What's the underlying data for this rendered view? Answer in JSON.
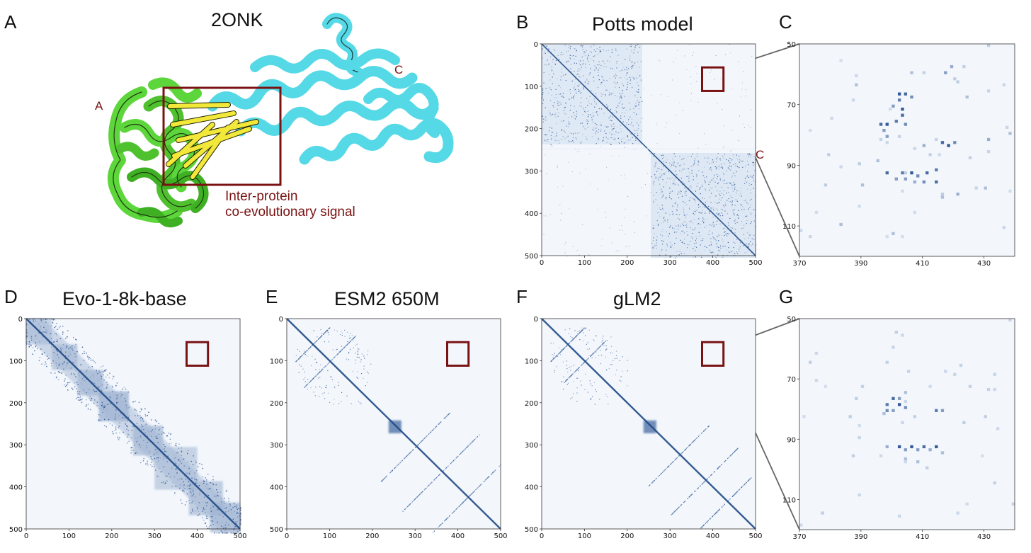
{
  "figure": {
    "panel_letters": {
      "A": "A",
      "B": "B",
      "C": "C",
      "D": "D",
      "E": "E",
      "F": "F",
      "G": "G"
    },
    "panel_a": {
      "title": "2ONK",
      "chain_a_label": "A",
      "chain_c_label": "C",
      "annotation_line1": "Inter-protein",
      "annotation_line2": "co-evolutionary signal",
      "colors": {
        "chain_a": "#5cd63a",
        "chain_c": "#56d9e6",
        "contacts": "#f2e83a",
        "highlight_box": "#7a1212"
      }
    },
    "colors": {
      "map_dark": "#1f4a86",
      "map_mid": "#6f9bcb",
      "map_light": "#dbe7f4",
      "box": "#7a1212"
    }
  },
  "chart_data": [
    {
      "id": "B",
      "type": "heatmap",
      "title": "Potts model",
      "xlim": [
        0,
        500
      ],
      "ylim": [
        0,
        500
      ],
      "xticks": [
        "0",
        "100",
        "200",
        "300",
        "400",
        "500"
      ],
      "yticks": [
        "0",
        "100",
        "200",
        "300",
        "400",
        "500"
      ],
      "block_labels": [
        "A",
        "C"
      ],
      "chain_boundary": 235,
      "highlight_region": {
        "x": [
          375,
          425
        ],
        "y": [
          55,
          110
        ]
      }
    },
    {
      "id": "C",
      "type": "heatmap",
      "title": "",
      "xlim": [
        370,
        440
      ],
      "ylim": [
        50,
        120
      ],
      "xticks": [
        "370",
        "390",
        "410",
        "430"
      ],
      "yticks": [
        "50",
        "70",
        "90",
        "110"
      ],
      "points": [
        [
          402,
          66,
          0.9
        ],
        [
          404,
          66,
          0.8
        ],
        [
          406,
          67,
          0.6
        ],
        [
          402,
          68,
          0.7
        ],
        [
          400,
          70,
          0.5
        ],
        [
          403,
          71,
          0.9
        ],
        [
          403,
          73,
          0.8
        ],
        [
          396,
          76,
          0.8
        ],
        [
          398,
          76,
          0.9
        ],
        [
          404,
          76,
          0.6
        ],
        [
          397,
          78,
          0.5
        ],
        [
          401,
          75,
          0.7
        ],
        [
          398,
          80,
          0.5
        ],
        [
          416,
          82,
          0.8
        ],
        [
          418,
          83,
          0.9
        ],
        [
          420,
          82,
          0.6
        ],
        [
          410,
          83,
          0.4
        ],
        [
          398,
          92,
          0.8
        ],
        [
          403,
          92,
          0.7
        ],
        [
          406,
          92,
          0.9
        ],
        [
          411,
          92,
          0.8
        ],
        [
          414,
          91,
          0.7
        ],
        [
          408,
          93,
          0.6
        ],
        [
          404,
          94,
          0.5
        ],
        [
          410,
          95,
          0.6
        ],
        [
          414,
          95,
          0.8
        ],
        [
          401,
          94,
          0.5
        ],
        [
          407,
          95,
          0.4
        ],
        [
          395,
          88,
          0.3
        ],
        [
          419,
          57,
          0.4
        ],
        [
          417,
          59,
          0.5
        ],
        [
          406,
          59,
          0.3
        ],
        [
          388,
          63,
          0.3
        ],
        [
          424,
          67,
          0.3
        ],
        [
          390,
          96,
          0.3
        ],
        [
          421,
          99,
          0.4
        ],
        [
          416,
          100,
          0.3
        ],
        [
          430,
          97,
          0.3
        ],
        [
          383,
          109,
          0.3
        ],
        [
          400,
          112,
          0.3
        ],
        [
          431,
          81,
          0.4
        ],
        [
          438,
          79,
          0.3
        ]
      ]
    },
    {
      "id": "D",
      "type": "heatmap",
      "title": "Evo-1-8k-base",
      "xlim": [
        0,
        500
      ],
      "ylim": [
        0,
        500
      ],
      "xticks": [
        "0",
        "100",
        "200",
        "300",
        "400",
        "500"
      ],
      "yticks": [
        "0",
        "100",
        "200",
        "300",
        "400",
        "500"
      ],
      "highlight_region": {
        "x": [
          375,
          425
        ],
        "y": [
          55,
          110
        ]
      }
    },
    {
      "id": "E",
      "type": "heatmap",
      "title": "ESM2 650M",
      "xlim": [
        0,
        500
      ],
      "ylim": [
        0,
        500
      ],
      "xticks": [
        "0",
        "100",
        "200",
        "300",
        "400",
        "500"
      ],
      "yticks": [
        "0",
        "100",
        "200",
        "300",
        "400",
        "500"
      ],
      "highlight_region": {
        "x": [
          375,
          425
        ],
        "y": [
          55,
          110
        ]
      }
    },
    {
      "id": "F",
      "type": "heatmap",
      "title": "gLM2",
      "xlim": [
        0,
        500
      ],
      "ylim": [
        0,
        500
      ],
      "xticks": [
        "0",
        "100",
        "200",
        "300",
        "400",
        "500"
      ],
      "yticks": [
        "0",
        "100",
        "200",
        "300",
        "400",
        "500"
      ],
      "highlight_region": {
        "x": [
          375,
          425
        ],
        "y": [
          55,
          110
        ]
      }
    },
    {
      "id": "G",
      "type": "heatmap",
      "title": "",
      "xlim": [
        370,
        440
      ],
      "ylim": [
        50,
        120
      ],
      "xticks": [
        "370",
        "390",
        "410",
        "430"
      ],
      "yticks": [
        "50",
        "70",
        "90",
        "110"
      ],
      "points": [
        [
          400,
          76,
          0.8
        ],
        [
          402,
          76,
          0.5
        ],
        [
          398,
          78,
          0.7
        ],
        [
          402,
          78,
          0.9
        ],
        [
          404,
          79,
          0.6
        ],
        [
          398,
          80,
          0.6
        ],
        [
          400,
          80,
          0.5
        ],
        [
          414,
          80,
          0.7
        ],
        [
          416,
          80,
          0.5
        ],
        [
          404,
          74,
          0.3
        ],
        [
          397,
          81,
          0.3
        ],
        [
          402,
          92,
          0.9
        ],
        [
          406,
          92,
          0.9
        ],
        [
          410,
          92,
          0.8
        ],
        [
          414,
          92,
          0.9
        ],
        [
          404,
          93,
          0.5
        ],
        [
          408,
          93,
          0.5
        ],
        [
          412,
          93,
          0.4
        ],
        [
          398,
          92,
          0.4
        ],
        [
          416,
          94,
          0.3
        ],
        [
          404,
          96,
          0.3
        ],
        [
          408,
          97,
          0.3
        ],
        [
          411,
          99,
          0.2
        ],
        [
          425,
          72,
          0.2
        ],
        [
          390,
          72,
          0.2
        ],
        [
          433,
          104,
          0.2
        ]
      ]
    }
  ]
}
